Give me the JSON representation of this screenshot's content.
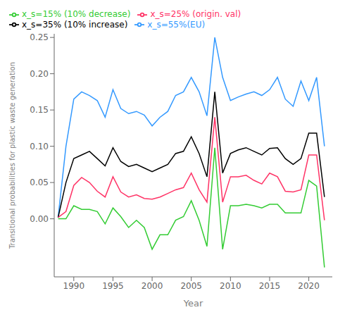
{
  "chart_data": {
    "type": "line",
    "xlabel": "Year",
    "ylabel": "Transitional probabilities for plastic waste generation",
    "x": [
      1988,
      1989,
      1990,
      1991,
      1992,
      1993,
      1994,
      1995,
      1996,
      1997,
      1998,
      1999,
      2000,
      2001,
      2002,
      2003,
      2004,
      2005,
      2006,
      2007,
      2008,
      2009,
      2010,
      2011,
      2012,
      2013,
      2014,
      2015,
      2016,
      2017,
      2018,
      2019,
      2020,
      2021,
      2022
    ],
    "series": [
      {
        "name": "x_s=55%(EU)",
        "color": "#3399FF",
        "values": [
          0.002,
          0.1,
          0.165,
          0.175,
          0.17,
          0.163,
          0.14,
          0.178,
          0.152,
          0.145,
          0.148,
          0.143,
          0.128,
          0.14,
          0.148,
          0.17,
          0.175,
          0.195,
          0.175,
          0.142,
          0.25,
          0.195,
          0.163,
          0.168,
          0.172,
          0.175,
          0.17,
          0.178,
          0.195,
          0.165,
          0.155,
          0.19,
          0.163,
          0.195,
          0.1
        ]
      },
      {
        "name": "x_s=35% (10% increase)",
        "color": "#000000",
        "values": [
          0.002,
          0.05,
          0.083,
          0.088,
          0.093,
          0.083,
          0.073,
          0.098,
          0.079,
          0.072,
          0.075,
          0.07,
          0.065,
          0.07,
          0.075,
          0.09,
          0.093,
          0.113,
          0.09,
          0.058,
          0.175,
          0.063,
          0.09,
          0.095,
          0.098,
          0.093,
          0.088,
          0.097,
          0.098,
          0.083,
          0.075,
          0.083,
          0.118,
          0.118,
          0.03
        ]
      },
      {
        "name": "x_s=25% (origin. val)",
        "color": "#FF3366",
        "values": [
          0.002,
          0.01,
          0.046,
          0.057,
          0.05,
          0.038,
          0.03,
          0.058,
          0.037,
          0.03,
          0.033,
          0.028,
          0.027,
          0.03,
          0.035,
          0.04,
          0.043,
          0.063,
          0.04,
          0.023,
          0.14,
          0.023,
          0.058,
          0.058,
          0.06,
          0.053,
          0.048,
          0.063,
          0.058,
          0.038,
          0.037,
          0.04,
          0.088,
          0.088,
          -0.002
        ]
      },
      {
        "name": "x_s=15% (10% decrease)",
        "color": "#33CC33",
        "values": [
          0.0,
          0.0,
          0.018,
          0.013,
          0.013,
          0.01,
          -0.007,
          0.015,
          0.003,
          -0.012,
          -0.002,
          -0.012,
          -0.042,
          -0.022,
          -0.022,
          -0.002,
          0.003,
          0.025,
          -0.002,
          -0.038,
          0.098,
          -0.042,
          0.018,
          0.018,
          0.02,
          0.018,
          0.015,
          0.02,
          0.02,
          0.008,
          0.008,
          0.008,
          0.053,
          0.045,
          -0.067
        ]
      }
    ],
    "xlim": [
      1987.5,
      2023
    ],
    "ylim": [
      -0.08,
      0.255
    ],
    "xticks": [
      1990,
      1995,
      2000,
      2005,
      2010,
      2015,
      2020
    ],
    "yticks": [
      {
        "value": 0,
        "label": "0.00"
      },
      0.05,
      {
        "value": 0.1,
        "label": "0.10"
      },
      0.15,
      {
        "value": 0.2,
        "label": "0.20"
      },
      0.25
    ],
    "grid": false,
    "legend": "upper left"
  }
}
